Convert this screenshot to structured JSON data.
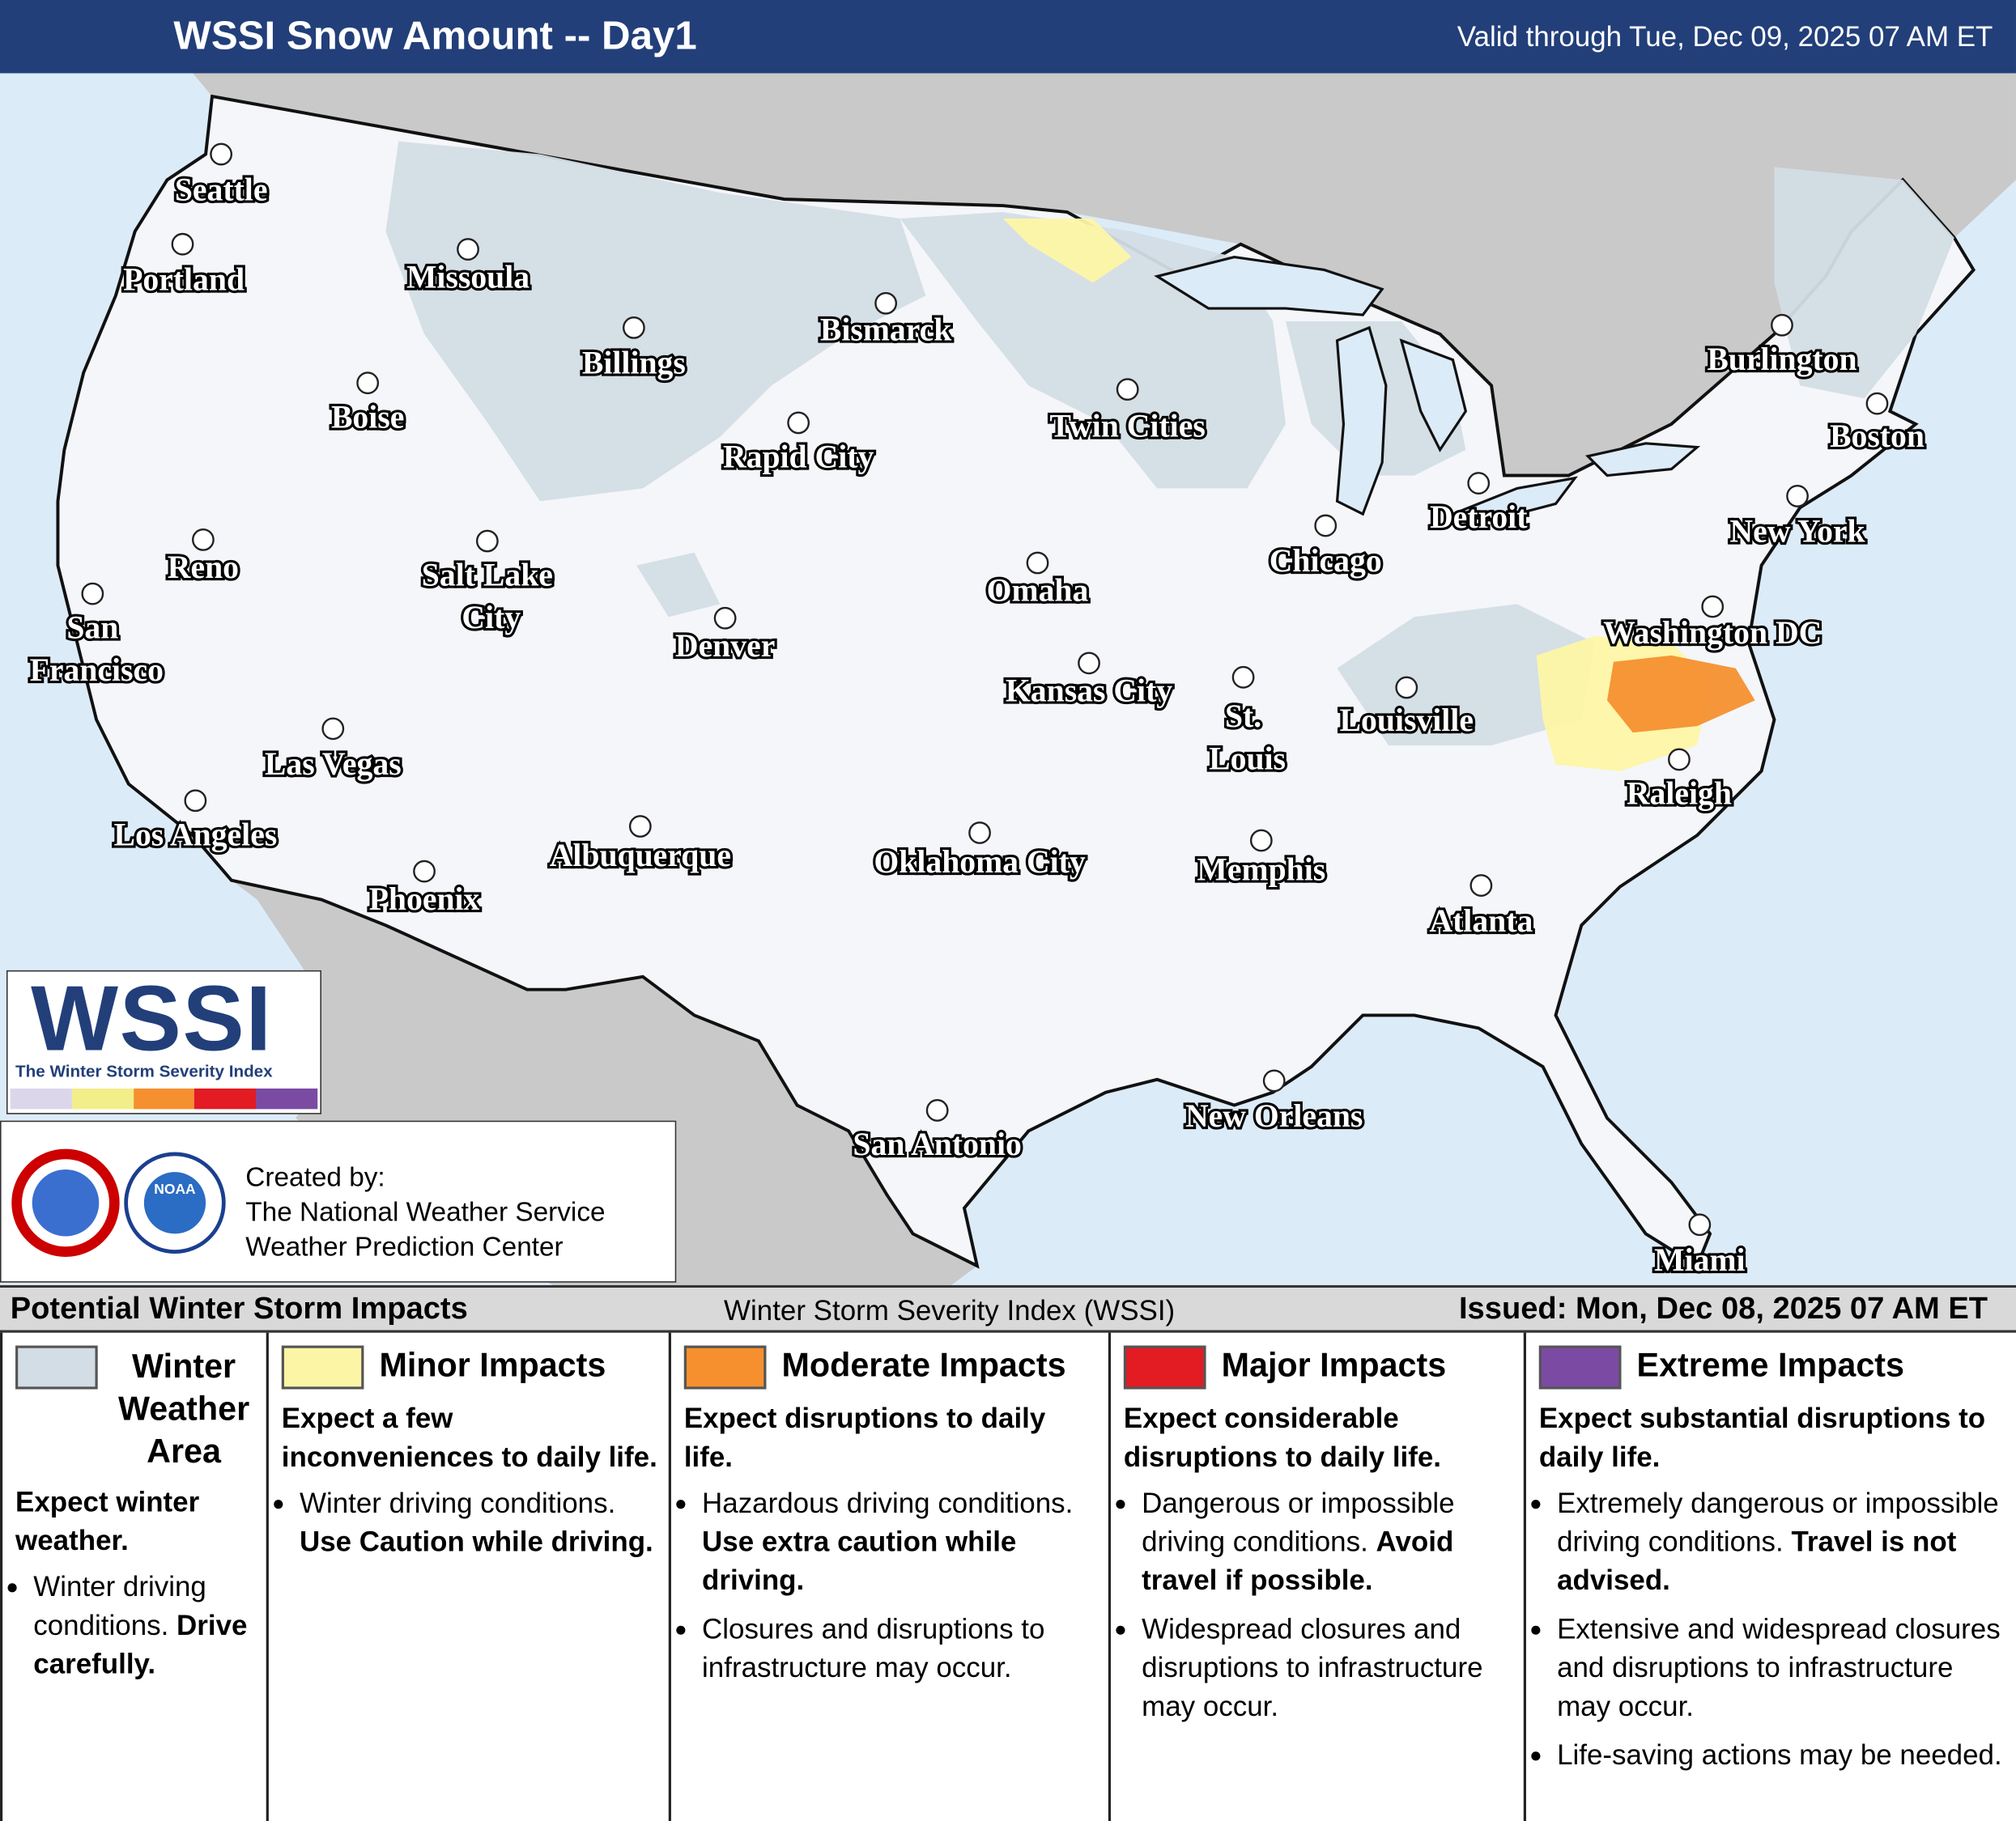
{
  "header": {
    "title": "WSSI Snow Amount -- Day1",
    "valid": "Valid through Tue, Dec 09, 2025 07 AM ET"
  },
  "map": {
    "cities": [
      "Seattle",
      "Portland",
      "Missoula",
      "Billings",
      "Bismarck",
      "Boise",
      "Rapid City",
      "Twin Cities",
      "Burlington",
      "Boston",
      "Detroit",
      "New York",
      "Reno",
      "Salt Lake City",
      "Chicago",
      "Omaha",
      "San Francisco",
      "Denver",
      "Washington DC",
      "Kansas City",
      "St. Louis",
      "Louisville",
      "Las Vegas",
      "Raleigh",
      "Los Angeles",
      "Albuquerque",
      "Oklahoma City",
      "Memphis",
      "Phoenix",
      "Atlanta",
      "New Orleans",
      "San Antonio",
      "Miami"
    ],
    "logo": {
      "title": "WSSI",
      "subtitle": "The Winter Storm Severity Index"
    },
    "credits": {
      "noaa": "NOAA",
      "created_by": "Created by:",
      "lines": [
        "The National Weather Service",
        "Weather Prediction Center"
      ]
    }
  },
  "legend": {
    "title": "Potential Winter Storm Impacts",
    "subtitle": "Winter Storm Severity Index (WSSI)",
    "issued": "Issued: Mon, Dec 08, 2025 07 AM ET",
    "categories": [
      {
        "name": "Winter Weather Area",
        "color": "#d3dde5",
        "summary": "Expect winter weather.",
        "bullets": [
          {
            "text": "Winter driving conditions.",
            "bold": "Drive carefully."
          }
        ]
      },
      {
        "name": "Minor Impacts",
        "color": "#fdf5a6",
        "summary": "Expect a few inconveniences to daily life.",
        "bullets": [
          {
            "text": "Winter driving conditions.",
            "bold": "Use Caution while driving."
          }
        ]
      },
      {
        "name": "Moderate Impacts",
        "color": "#f6902f",
        "summary": "Expect disruptions to daily life.",
        "bullets": [
          {
            "text": "Hazardous driving conditions.",
            "bold": "Use extra caution while driving."
          },
          {
            "text": "Closures and disruptions to infrastructure may occur."
          }
        ]
      },
      {
        "name": "Major Impacts",
        "color": "#e31b23",
        "summary": "Expect considerable disruptions to daily life.",
        "bullets": [
          {
            "text": "Dangerous or impossible driving conditions.",
            "bold": "Avoid travel if possible."
          },
          {
            "text": "Widespread closures and disruptions to infrastructure may occur."
          }
        ]
      },
      {
        "name": "Extreme Impacts",
        "color": "#7b4ba3",
        "summary": "Expect substantial disruptions to daily life.",
        "bullets": [
          {
            "text": "Extremely dangerous or impossible driving conditions.",
            "bold": "Travel is not advised."
          },
          {
            "text": "Extensive and widespread closures and disruptions to infrastructure may occur."
          },
          {
            "text": "Life-saving actions may be needed."
          }
        ]
      }
    ]
  }
}
